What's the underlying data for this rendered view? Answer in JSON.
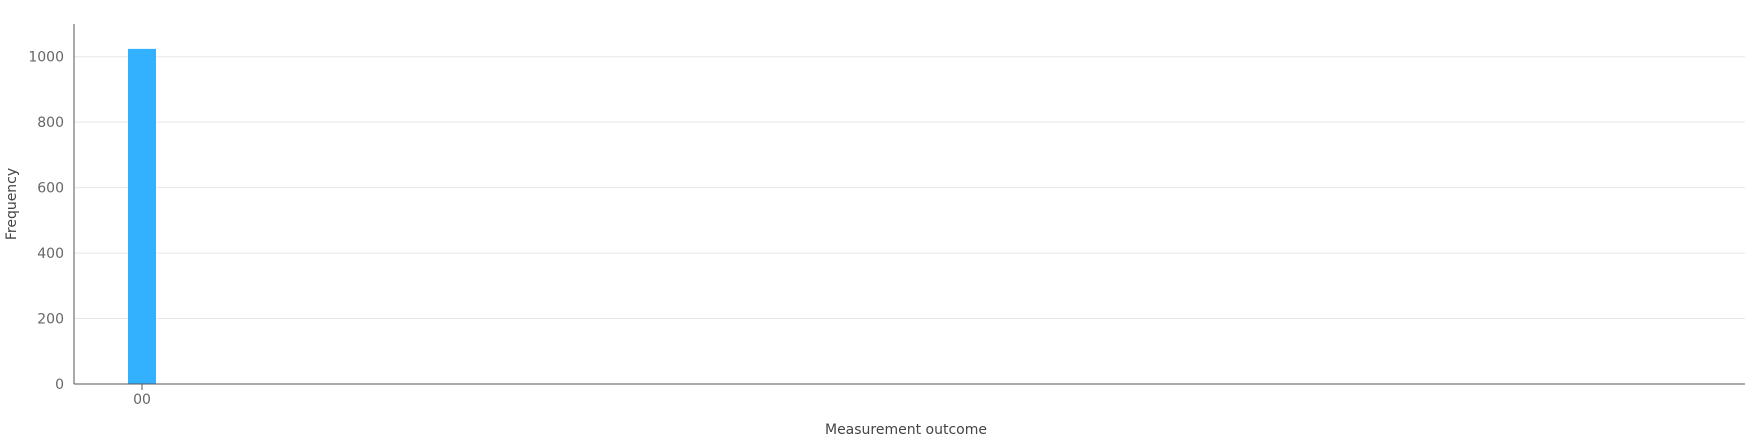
{
  "chart_data": {
    "type": "bar",
    "title": "",
    "xlabel": "Measurement outcome",
    "ylabel": "Frequency",
    "categories": [
      "00"
    ],
    "values": [
      1024
    ],
    "ylim": [
      0,
      1100
    ],
    "yticks": [
      0,
      200,
      400,
      600,
      800,
      1000
    ],
    "grid": true,
    "bar_color": "#33b1ff",
    "grid_color": "#e8e8e8",
    "axis_color": "#555555"
  }
}
